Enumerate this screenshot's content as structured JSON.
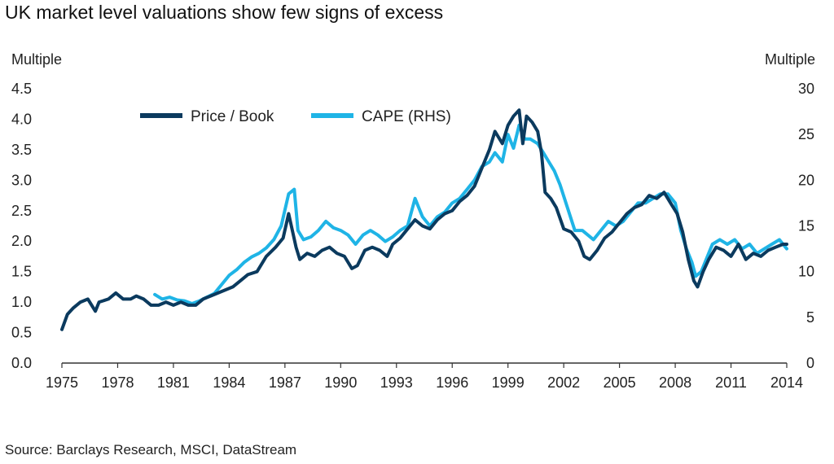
{
  "title": "UK market level valuations show few signs of excess",
  "source": "Source: Barclays Research, MSCI, DataStream",
  "chart_data": {
    "type": "line",
    "title": "UK market level valuations show few signs of excess",
    "ylabel_left": "Multiple",
    "ylabel_right": "Multiple",
    "xlim": [
      1975,
      2014
    ],
    "ylim_left": [
      0,
      4.5
    ],
    "ylim_right": [
      0,
      30
    ],
    "x_ticks": [
      "1975",
      "1978",
      "1981",
      "1984",
      "1987",
      "1990",
      "1993",
      "1996",
      "1999",
      "2002",
      "2005",
      "2008",
      "2011",
      "2014"
    ],
    "y_ticks_left": [
      "0.0",
      "0.5",
      "1.0",
      "1.5",
      "2.0",
      "2.5",
      "3.0",
      "3.5",
      "4.0",
      "4.5"
    ],
    "y_ticks_right": [
      "0",
      "5",
      "10",
      "15",
      "20",
      "25",
      "30"
    ],
    "legend_position": "top-left",
    "grid": false,
    "series": [
      {
        "name": "Price / Book",
        "axis": "left",
        "color": "#0b3a5e",
        "x": [
          1975.0,
          1975.3,
          1975.6,
          1976.0,
          1976.4,
          1976.8,
          1977.0,
          1977.5,
          1977.9,
          1978.3,
          1978.7,
          1979.0,
          1979.4,
          1979.8,
          1980.2,
          1980.6,
          1981.0,
          1981.4,
          1981.8,
          1982.2,
          1982.6,
          1983.0,
          1983.4,
          1983.8,
          1984.2,
          1984.6,
          1985.0,
          1985.5,
          1986.0,
          1986.5,
          1986.9,
          1987.2,
          1987.6,
          1987.8,
          1988.2,
          1988.6,
          1989.0,
          1989.4,
          1989.8,
          1990.2,
          1990.6,
          1990.9,
          1991.3,
          1991.7,
          1992.1,
          1992.5,
          1992.8,
          1993.2,
          1993.6,
          1994.0,
          1994.4,
          1994.8,
          1995.2,
          1995.6,
          1996.0,
          1996.4,
          1996.8,
          1997.2,
          1997.6,
          1998.0,
          1998.3,
          1998.7,
          1999.0,
          1999.3,
          1999.6,
          1999.8,
          2000.0,
          2000.3,
          2000.6,
          2000.8,
          2001.0,
          2001.3,
          2001.6,
          2002.0,
          2002.4,
          2002.8,
          2003.1,
          2003.4,
          2003.8,
          2004.2,
          2004.6,
          2005.0,
          2005.4,
          2005.8,
          2006.2,
          2006.6,
          2007.0,
          2007.4,
          2007.8,
          2008.1,
          2008.4,
          2008.7,
          2009.0,
          2009.2,
          2009.5,
          2009.8,
          2010.2,
          2010.6,
          2011.0,
          2011.4,
          2011.8,
          2012.2,
          2012.6,
          2013.0,
          2013.4,
          2013.8,
          2014.0
        ],
        "values": [
          0.55,
          0.8,
          0.9,
          1.0,
          1.05,
          0.85,
          1.0,
          1.05,
          1.15,
          1.05,
          1.05,
          1.1,
          1.05,
          0.95,
          0.95,
          1.0,
          0.95,
          1.0,
          0.95,
          0.95,
          1.05,
          1.1,
          1.15,
          1.2,
          1.25,
          1.35,
          1.45,
          1.5,
          1.75,
          1.9,
          2.05,
          2.45,
          1.9,
          1.7,
          1.8,
          1.75,
          1.85,
          1.9,
          1.8,
          1.75,
          1.55,
          1.6,
          1.85,
          1.9,
          1.85,
          1.75,
          1.95,
          2.05,
          2.2,
          2.35,
          2.25,
          2.2,
          2.35,
          2.45,
          2.5,
          2.65,
          2.75,
          2.9,
          3.2,
          3.5,
          3.8,
          3.6,
          3.9,
          4.05,
          4.15,
          3.6,
          4.05,
          3.95,
          3.8,
          3.45,
          2.8,
          2.7,
          2.55,
          2.2,
          2.15,
          2.0,
          1.75,
          1.7,
          1.85,
          2.05,
          2.15,
          2.3,
          2.45,
          2.55,
          2.6,
          2.75,
          2.7,
          2.8,
          2.6,
          2.45,
          2.15,
          1.7,
          1.35,
          1.25,
          1.5,
          1.7,
          1.9,
          1.85,
          1.75,
          1.95,
          1.7,
          1.8,
          1.75,
          1.85,
          1.9,
          1.95,
          1.95
        ]
      },
      {
        "name": "CAPE (RHS)",
        "axis": "right",
        "color": "#1fb4e6",
        "x": [
          1980.0,
          1980.4,
          1980.8,
          1981.2,
          1981.6,
          1982.0,
          1982.4,
          1982.8,
          1983.2,
          1983.6,
          1984.0,
          1984.4,
          1984.8,
          1985.2,
          1985.6,
          1986.0,
          1986.4,
          1986.8,
          1987.2,
          1987.5,
          1987.7,
          1988.0,
          1988.4,
          1988.8,
          1989.2,
          1989.6,
          1990.0,
          1990.4,
          1990.8,
          1991.2,
          1991.6,
          1992.0,
          1992.4,
          1992.8,
          1993.2,
          1993.6,
          1994.0,
          1994.4,
          1994.8,
          1995.2,
          1995.6,
          1996.0,
          1996.4,
          1996.8,
          1997.2,
          1997.6,
          1998.0,
          1998.3,
          1998.7,
          1999.0,
          1999.3,
          1999.6,
          1999.9,
          2000.2,
          2000.6,
          2000.9,
          2001.2,
          2001.5,
          2001.8,
          2002.2,
          2002.6,
          2003.0,
          2003.3,
          2003.6,
          2004.0,
          2004.4,
          2004.8,
          2005.2,
          2005.6,
          2006.0,
          2006.4,
          2006.8,
          2007.2,
          2007.6,
          2008.0,
          2008.3,
          2008.6,
          2008.9,
          2009.1,
          2009.4,
          2009.7,
          2010.0,
          2010.4,
          2010.8,
          2011.2,
          2011.6,
          2012.0,
          2012.4,
          2012.8,
          2013.2,
          2013.6,
          2014.0
        ],
        "values": [
          7.5,
          7.0,
          7.2,
          6.9,
          6.8,
          6.5,
          6.8,
          7.2,
          7.6,
          8.6,
          9.6,
          10.2,
          11.0,
          11.6,
          12.0,
          12.6,
          13.5,
          15.0,
          18.5,
          19.0,
          14.5,
          13.5,
          13.8,
          14.5,
          15.5,
          14.8,
          14.5,
          14.0,
          13.0,
          14.0,
          14.5,
          14.0,
          13.3,
          13.8,
          14.5,
          15.0,
          18.0,
          16.0,
          15.0,
          16.0,
          16.5,
          17.5,
          18.0,
          19.0,
          20.0,
          21.5,
          22.0,
          23.0,
          22.0,
          25.0,
          23.5,
          26.0,
          24.5,
          24.5,
          24.0,
          23.0,
          22.0,
          21.0,
          19.5,
          17.0,
          14.5,
          14.5,
          14.0,
          13.5,
          14.5,
          15.5,
          15.0,
          15.5,
          16.5,
          17.5,
          17.5,
          18.0,
          18.5,
          18.5,
          17.5,
          14.5,
          12.5,
          11.0,
          9.5,
          10.0,
          11.5,
          13.0,
          13.5,
          13.0,
          13.5,
          12.5,
          13.0,
          12.0,
          12.5,
          13.0,
          13.5,
          12.5
        ]
      }
    ]
  }
}
